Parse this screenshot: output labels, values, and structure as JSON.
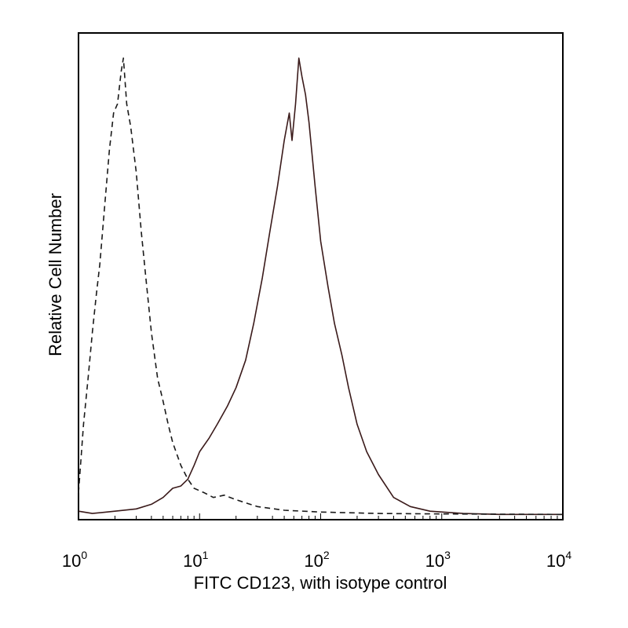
{
  "chart_data": {
    "type": "line",
    "xlabel": "FITC CD123, with isotype control",
    "ylabel": "Relative Cell Number",
    "x_scale": "log",
    "xlim": [
      1,
      10000
    ],
    "ylim": [
      0,
      1
    ],
    "x_ticks": [
      {
        "base": "10",
        "exp": "0",
        "value": 1
      },
      {
        "base": "10",
        "exp": "1",
        "value": 10
      },
      {
        "base": "10",
        "exp": "2",
        "value": 100
      },
      {
        "base": "10",
        "exp": "3",
        "value": 1000
      },
      {
        "base": "10",
        "exp": "4",
        "value": 10000
      }
    ],
    "grid": false,
    "legend": "none",
    "series": [
      {
        "style": "solid",
        "color": "#3a1a1a",
        "points": [
          [
            1.0,
            0.01
          ],
          [
            1.3,
            0.005
          ],
          [
            2.0,
            0.01
          ],
          [
            3.0,
            0.015
          ],
          [
            4.0,
            0.025
          ],
          [
            5.0,
            0.04
          ],
          [
            6.0,
            0.06
          ],
          [
            7.0,
            0.065
          ],
          [
            8.0,
            0.08
          ],
          [
            9.0,
            0.11
          ],
          [
            10.0,
            0.14
          ],
          [
            12.0,
            0.17
          ],
          [
            14.0,
            0.2
          ],
          [
            17.0,
            0.24
          ],
          [
            20.0,
            0.28
          ],
          [
            24.0,
            0.34
          ],
          [
            28.0,
            0.42
          ],
          [
            33.0,
            0.52
          ],
          [
            38.0,
            0.62
          ],
          [
            44.0,
            0.72
          ],
          [
            50.0,
            0.82
          ],
          [
            55.0,
            0.88
          ],
          [
            58.0,
            0.82
          ],
          [
            62.0,
            0.9
          ],
          [
            66.0,
            1.0
          ],
          [
            70.0,
            0.96
          ],
          [
            75.0,
            0.92
          ],
          [
            80.0,
            0.86
          ],
          [
            90.0,
            0.72
          ],
          [
            100.0,
            0.6
          ],
          [
            115.0,
            0.5
          ],
          [
            130.0,
            0.42
          ],
          [
            150.0,
            0.35
          ],
          [
            170.0,
            0.28
          ],
          [
            200.0,
            0.2
          ],
          [
            240.0,
            0.14
          ],
          [
            300.0,
            0.09
          ],
          [
            400.0,
            0.04
          ],
          [
            550.0,
            0.02
          ],
          [
            800.0,
            0.01
          ],
          [
            1500.0,
            0.005
          ],
          [
            3000.0,
            0.003
          ],
          [
            10000.0,
            0.003
          ]
        ]
      },
      {
        "style": "dashed",
        "color": "#1a1a1a",
        "points": [
          [
            1.0,
            0.05
          ],
          [
            1.1,
            0.2
          ],
          [
            1.2,
            0.3
          ],
          [
            1.3,
            0.4
          ],
          [
            1.4,
            0.48
          ],
          [
            1.5,
            0.55
          ],
          [
            1.65,
            0.68
          ],
          [
            1.8,
            0.8
          ],
          [
            1.95,
            0.88
          ],
          [
            2.1,
            0.9
          ],
          [
            2.25,
            0.97
          ],
          [
            2.35,
            1.0
          ],
          [
            2.5,
            0.9
          ],
          [
            2.7,
            0.85
          ],
          [
            3.0,
            0.75
          ],
          [
            3.3,
            0.62
          ],
          [
            3.6,
            0.52
          ],
          [
            4.0,
            0.4
          ],
          [
            4.5,
            0.3
          ],
          [
            5.0,
            0.25
          ],
          [
            5.5,
            0.2
          ],
          [
            6.0,
            0.16
          ],
          [
            7.0,
            0.11
          ],
          [
            8.0,
            0.08
          ],
          [
            9.0,
            0.06
          ],
          [
            11.0,
            0.05
          ],
          [
            13.0,
            0.04
          ],
          [
            16.0,
            0.045
          ],
          [
            20.0,
            0.035
          ],
          [
            30.0,
            0.02
          ],
          [
            50.0,
            0.012
          ],
          [
            100.0,
            0.008
          ],
          [
            300.0,
            0.005
          ],
          [
            1000.0,
            0.004
          ],
          [
            10000.0,
            0.003
          ]
        ]
      }
    ]
  }
}
